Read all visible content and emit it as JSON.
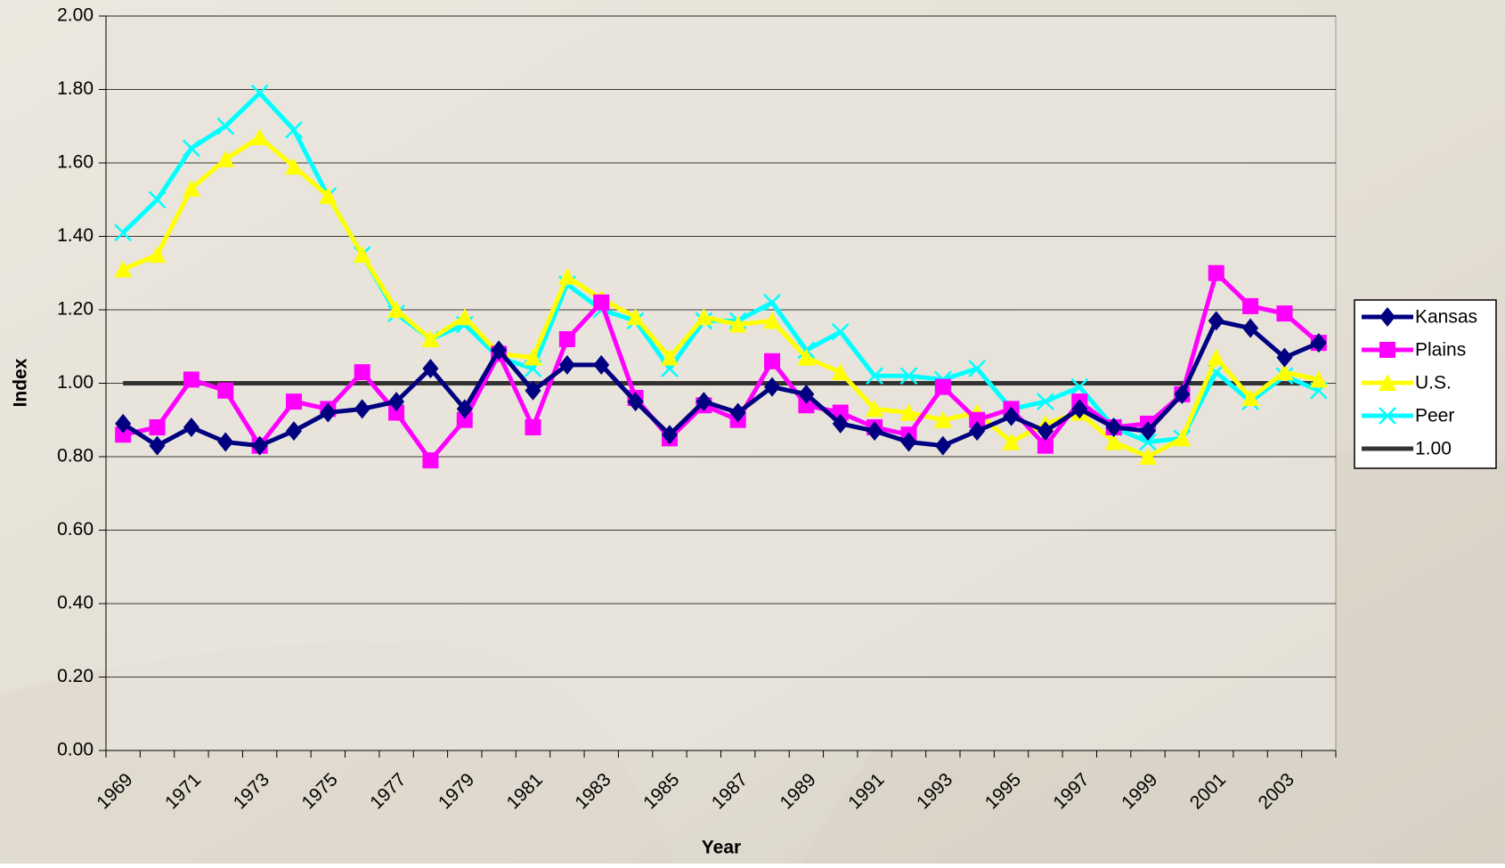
{
  "chart_data": {
    "type": "line",
    "x_label": "Year",
    "y_label": "Index",
    "categories": [
      "1969",
      null,
      "1971",
      null,
      "1973",
      null,
      "1975",
      null,
      "1977",
      null,
      "1979",
      null,
      "1981",
      null,
      "1983",
      null,
      "1985",
      null,
      "1987",
      null,
      "1989",
      null,
      "1991",
      null,
      "1993",
      null,
      "1995",
      null,
      "1997",
      null,
      "1999",
      null,
      "2001",
      null,
      "2003",
      null
    ],
    "series": [
      {
        "name": "Kansas",
        "color": "#000080",
        "marker": "diamond",
        "values": [
          0.89,
          0.83,
          0.88,
          0.84,
          0.83,
          0.87,
          0.92,
          0.93,
          0.95,
          1.04,
          0.93,
          1.09,
          0.98,
          1.05,
          1.05,
          0.95,
          0.86,
          0.95,
          0.92,
          0.99,
          0.97,
          0.89,
          0.87,
          0.84,
          0.83,
          0.87,
          0.91,
          0.87,
          0.93,
          0.88,
          0.87,
          0.97,
          1.17,
          1.15,
          1.07,
          1.11
        ]
      },
      {
        "name": "Plains",
        "color": "#ff00ff",
        "marker": "square",
        "values": [
          0.86,
          0.88,
          1.01,
          0.98,
          0.83,
          0.95,
          0.93,
          1.03,
          0.92,
          0.79,
          0.9,
          1.08,
          0.88,
          1.12,
          1.22,
          0.96,
          0.85,
          0.94,
          0.9,
          1.06,
          0.94,
          0.92,
          0.88,
          0.86,
          0.99,
          0.9,
          0.93,
          0.83,
          0.95,
          0.88,
          0.89,
          0.97,
          1.3,
          1.21,
          1.19,
          1.11
        ]
      },
      {
        "name": "U.S.",
        "color": "#ffff00",
        "marker": "triangle",
        "values": [
          1.31,
          1.35,
          1.53,
          1.61,
          1.67,
          1.59,
          1.51,
          1.35,
          1.2,
          1.12,
          1.18,
          1.08,
          1.07,
          1.29,
          1.23,
          1.18,
          1.07,
          1.18,
          1.16,
          1.17,
          1.07,
          1.03,
          0.93,
          0.92,
          0.9,
          0.92,
          0.84,
          0.89,
          0.92,
          0.84,
          0.8,
          0.85,
          1.07,
          0.96,
          1.03,
          1.01
        ]
      },
      {
        "name": "Peer",
        "color": "#00ffff",
        "marker": "x",
        "values": [
          1.41,
          1.5,
          1.64,
          1.7,
          1.79,
          1.69,
          1.51,
          1.35,
          1.19,
          1.12,
          1.16,
          1.07,
          1.04,
          1.27,
          1.2,
          1.17,
          1.04,
          1.17,
          1.17,
          1.22,
          1.09,
          1.14,
          1.02,
          1.02,
          1.01,
          1.04,
          0.93,
          0.95,
          0.99,
          0.88,
          0.84,
          0.85,
          1.03,
          0.95,
          1.02,
          0.98
        ]
      },
      {
        "name": "1.00",
        "color": "#333333",
        "marker": "none",
        "values": [
          1,
          1,
          1,
          1,
          1,
          1,
          1,
          1,
          1,
          1,
          1,
          1,
          1,
          1,
          1,
          1,
          1,
          1,
          1,
          1,
          1,
          1,
          1,
          1,
          1,
          1,
          1,
          1,
          1,
          1,
          1,
          1,
          1,
          1,
          1,
          1
        ]
      }
    ],
    "ylim": [
      0,
      2
    ],
    "yticks": [
      {
        "value": 0,
        "label": "0.00"
      },
      {
        "value": 0.2,
        "label": "0.20"
      },
      {
        "value": 0.4,
        "label": "0.40"
      },
      {
        "value": 0.6,
        "label": "0.60"
      },
      {
        "value": 0.8,
        "label": "0.80"
      },
      {
        "value": 1,
        "label": "1.00"
      },
      {
        "value": 1.2,
        "label": "1.20"
      },
      {
        "value": 1.4,
        "label": "1.40"
      },
      {
        "value": 1.6,
        "label": "1.60"
      },
      {
        "value": 1.8,
        "label": "1.80"
      },
      {
        "value": 2,
        "label": "2.00"
      }
    ],
    "grid": true,
    "legend": "right"
  }
}
